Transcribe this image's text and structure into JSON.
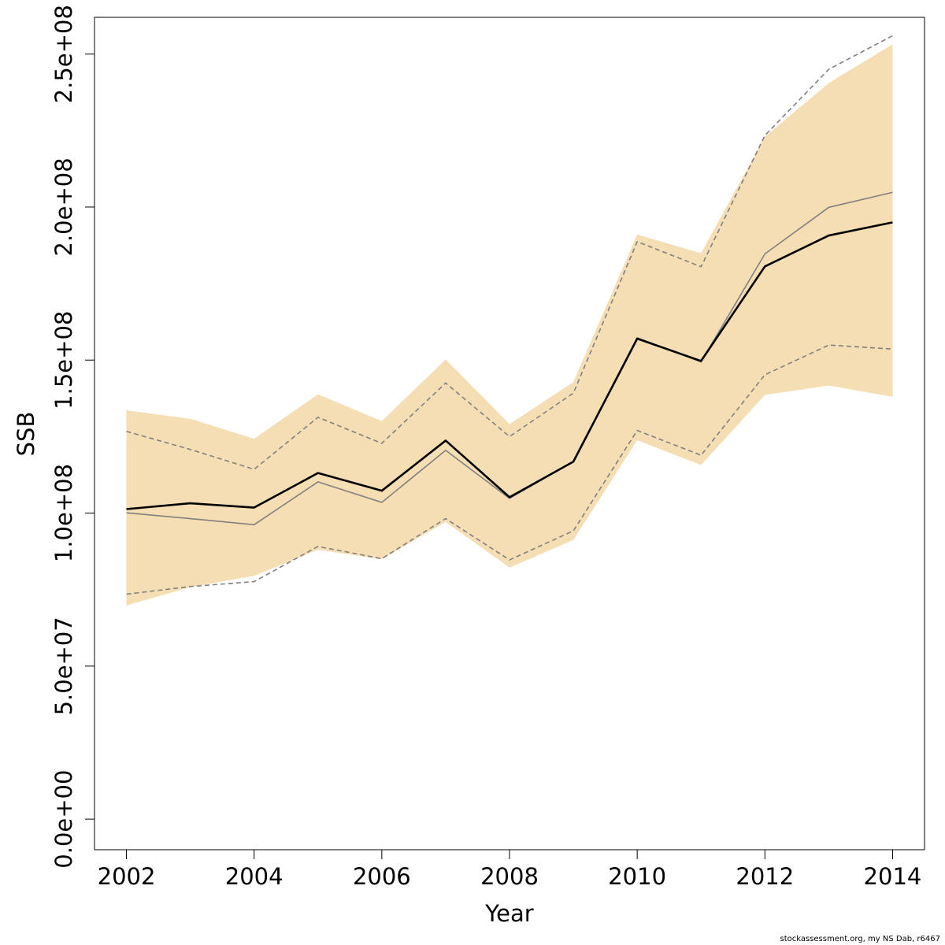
{
  "chart_data": {
    "type": "line",
    "xlabel": "Year",
    "ylabel": "SSB",
    "xlim": [
      2001.5,
      2014.5
    ],
    "ylim": [
      -10000000,
      262000000
    ],
    "x_ticks": [
      2002,
      2004,
      2006,
      2008,
      2010,
      2012,
      2014
    ],
    "x_tick_labels": [
      "2002",
      "2004",
      "2006",
      "2008",
      "2010",
      "2012",
      "2014"
    ],
    "y_ticks": [
      0,
      50000000,
      100000000,
      150000000,
      200000000,
      250000000
    ],
    "y_tick_labels": [
      "0.0e+00",
      "5.0e+07",
      "1.0e+08",
      "1.5e+08",
      "2.0e+08",
      "2.5e+08"
    ],
    "x": [
      2002,
      2003,
      2004,
      2005,
      2006,
      2007,
      2008,
      2009,
      2010,
      2011,
      2012,
      2013,
      2014
    ],
    "band": {
      "color": "#F5DEB3",
      "lower": [
        69800000,
        75800000,
        79500000,
        88000000,
        84900000,
        97100000,
        82200000,
        91200000,
        123800000,
        115700000,
        138600000,
        141700000,
        138000000
      ],
      "upper": [
        133600000,
        130800000,
        124300000,
        138800000,
        130100000,
        150200000,
        129100000,
        142800000,
        191000000,
        184900000,
        223000000,
        240500000,
        253200000
      ]
    },
    "series": [
      {
        "role": "estimate",
        "color": "#000000",
        "style": "solid-thick",
        "values": [
          101300000,
          103200000,
          101800000,
          113100000,
          107300000,
          123700000,
          105200000,
          116800000,
          157000000,
          149700000,
          180600000,
          190700000,
          195000000
        ]
      },
      {
        "role": "comparison-estimate",
        "color": "#808080",
        "style": "solid-thin",
        "values": [
          100100000,
          98200000,
          96200000,
          110200000,
          103500000,
          120500000,
          104800000,
          116800000,
          157300000,
          149400000,
          184700000,
          199900000,
          204800000
        ]
      },
      {
        "role": "comparison-upper",
        "color": "#808080",
        "style": "dashed",
        "values": [
          126700000,
          120800000,
          114300000,
          131300000,
          122800000,
          142500000,
          125000000,
          139200000,
          188700000,
          180500000,
          223400000,
          245000000,
          256000000
        ]
      },
      {
        "role": "comparison-lower",
        "color": "#808080",
        "style": "dashed",
        "values": [
          73500000,
          76000000,
          77600000,
          89100000,
          85100000,
          98200000,
          84700000,
          94200000,
          127000000,
          118900000,
          145200000,
          154900000,
          153600000
        ]
      }
    ]
  },
  "footer": {
    "note": "stockassessment.org, my  NS Dab, r6467"
  }
}
